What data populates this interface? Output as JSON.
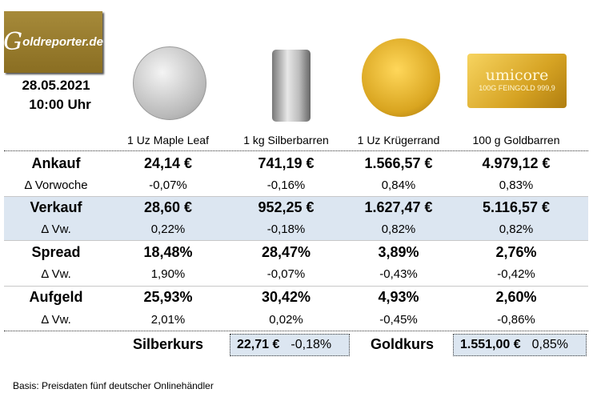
{
  "logo": {
    "text": "Goldreporter.de"
  },
  "date": "28.05.2021",
  "time": "10:00 Uhr",
  "products": [
    "1 Uz Maple Leaf",
    "1 kg Silberbarren",
    "1 Uz Krügerrand",
    "100 g Goldbarren"
  ],
  "bar_imprint": {
    "brand": "umicore",
    "text": "100G FEINGOLD 999,9"
  },
  "rows": [
    {
      "label": "Ankauf",
      "values": [
        "24,14 €",
        "741,19 €",
        "1.566,57 €",
        "4.979,12 €"
      ],
      "bold": true
    },
    {
      "label": "Δ Vorwoche",
      "values": [
        "-0,07%",
        "-0,16%",
        "0,84%",
        "0,83%"
      ]
    },
    {
      "label": "Verkauf",
      "values": [
        "28,60 €",
        "952,25 €",
        "1.627,47 €",
        "5.116,57 €"
      ],
      "bold": true
    },
    {
      "label": "Δ Vw.",
      "values": [
        "0,22%",
        "-0,18%",
        "0,82%",
        "0,82%"
      ]
    },
    {
      "label": "Spread",
      "values": [
        "18,48%",
        "28,47%",
        "3,89%",
        "2,76%"
      ],
      "bold": true
    },
    {
      "label": "Δ Vw.",
      "values": [
        "1,90%",
        "-0,07%",
        "-0,43%",
        "-0,42%"
      ]
    },
    {
      "label": "Aufgeld",
      "values": [
        "25,93%",
        "30,42%",
        "4,93%",
        "2,60%"
      ],
      "bold": true
    },
    {
      "label": "Δ Vw.",
      "values": [
        "2,01%",
        "0,02%",
        "-0,45%",
        "-0,86%"
      ]
    }
  ],
  "silver": {
    "label": "Silberkurs",
    "price": "22,71 €",
    "change": "-0,18%"
  },
  "gold": {
    "label": "Goldkurs",
    "price": "1.551,00 €",
    "change": "0,85%"
  },
  "footnote": "Basis: Preisdaten fünf deutscher Onlinehändler",
  "colors": {
    "highlight": "#dce6f1",
    "logo": "#9a7e2e"
  }
}
